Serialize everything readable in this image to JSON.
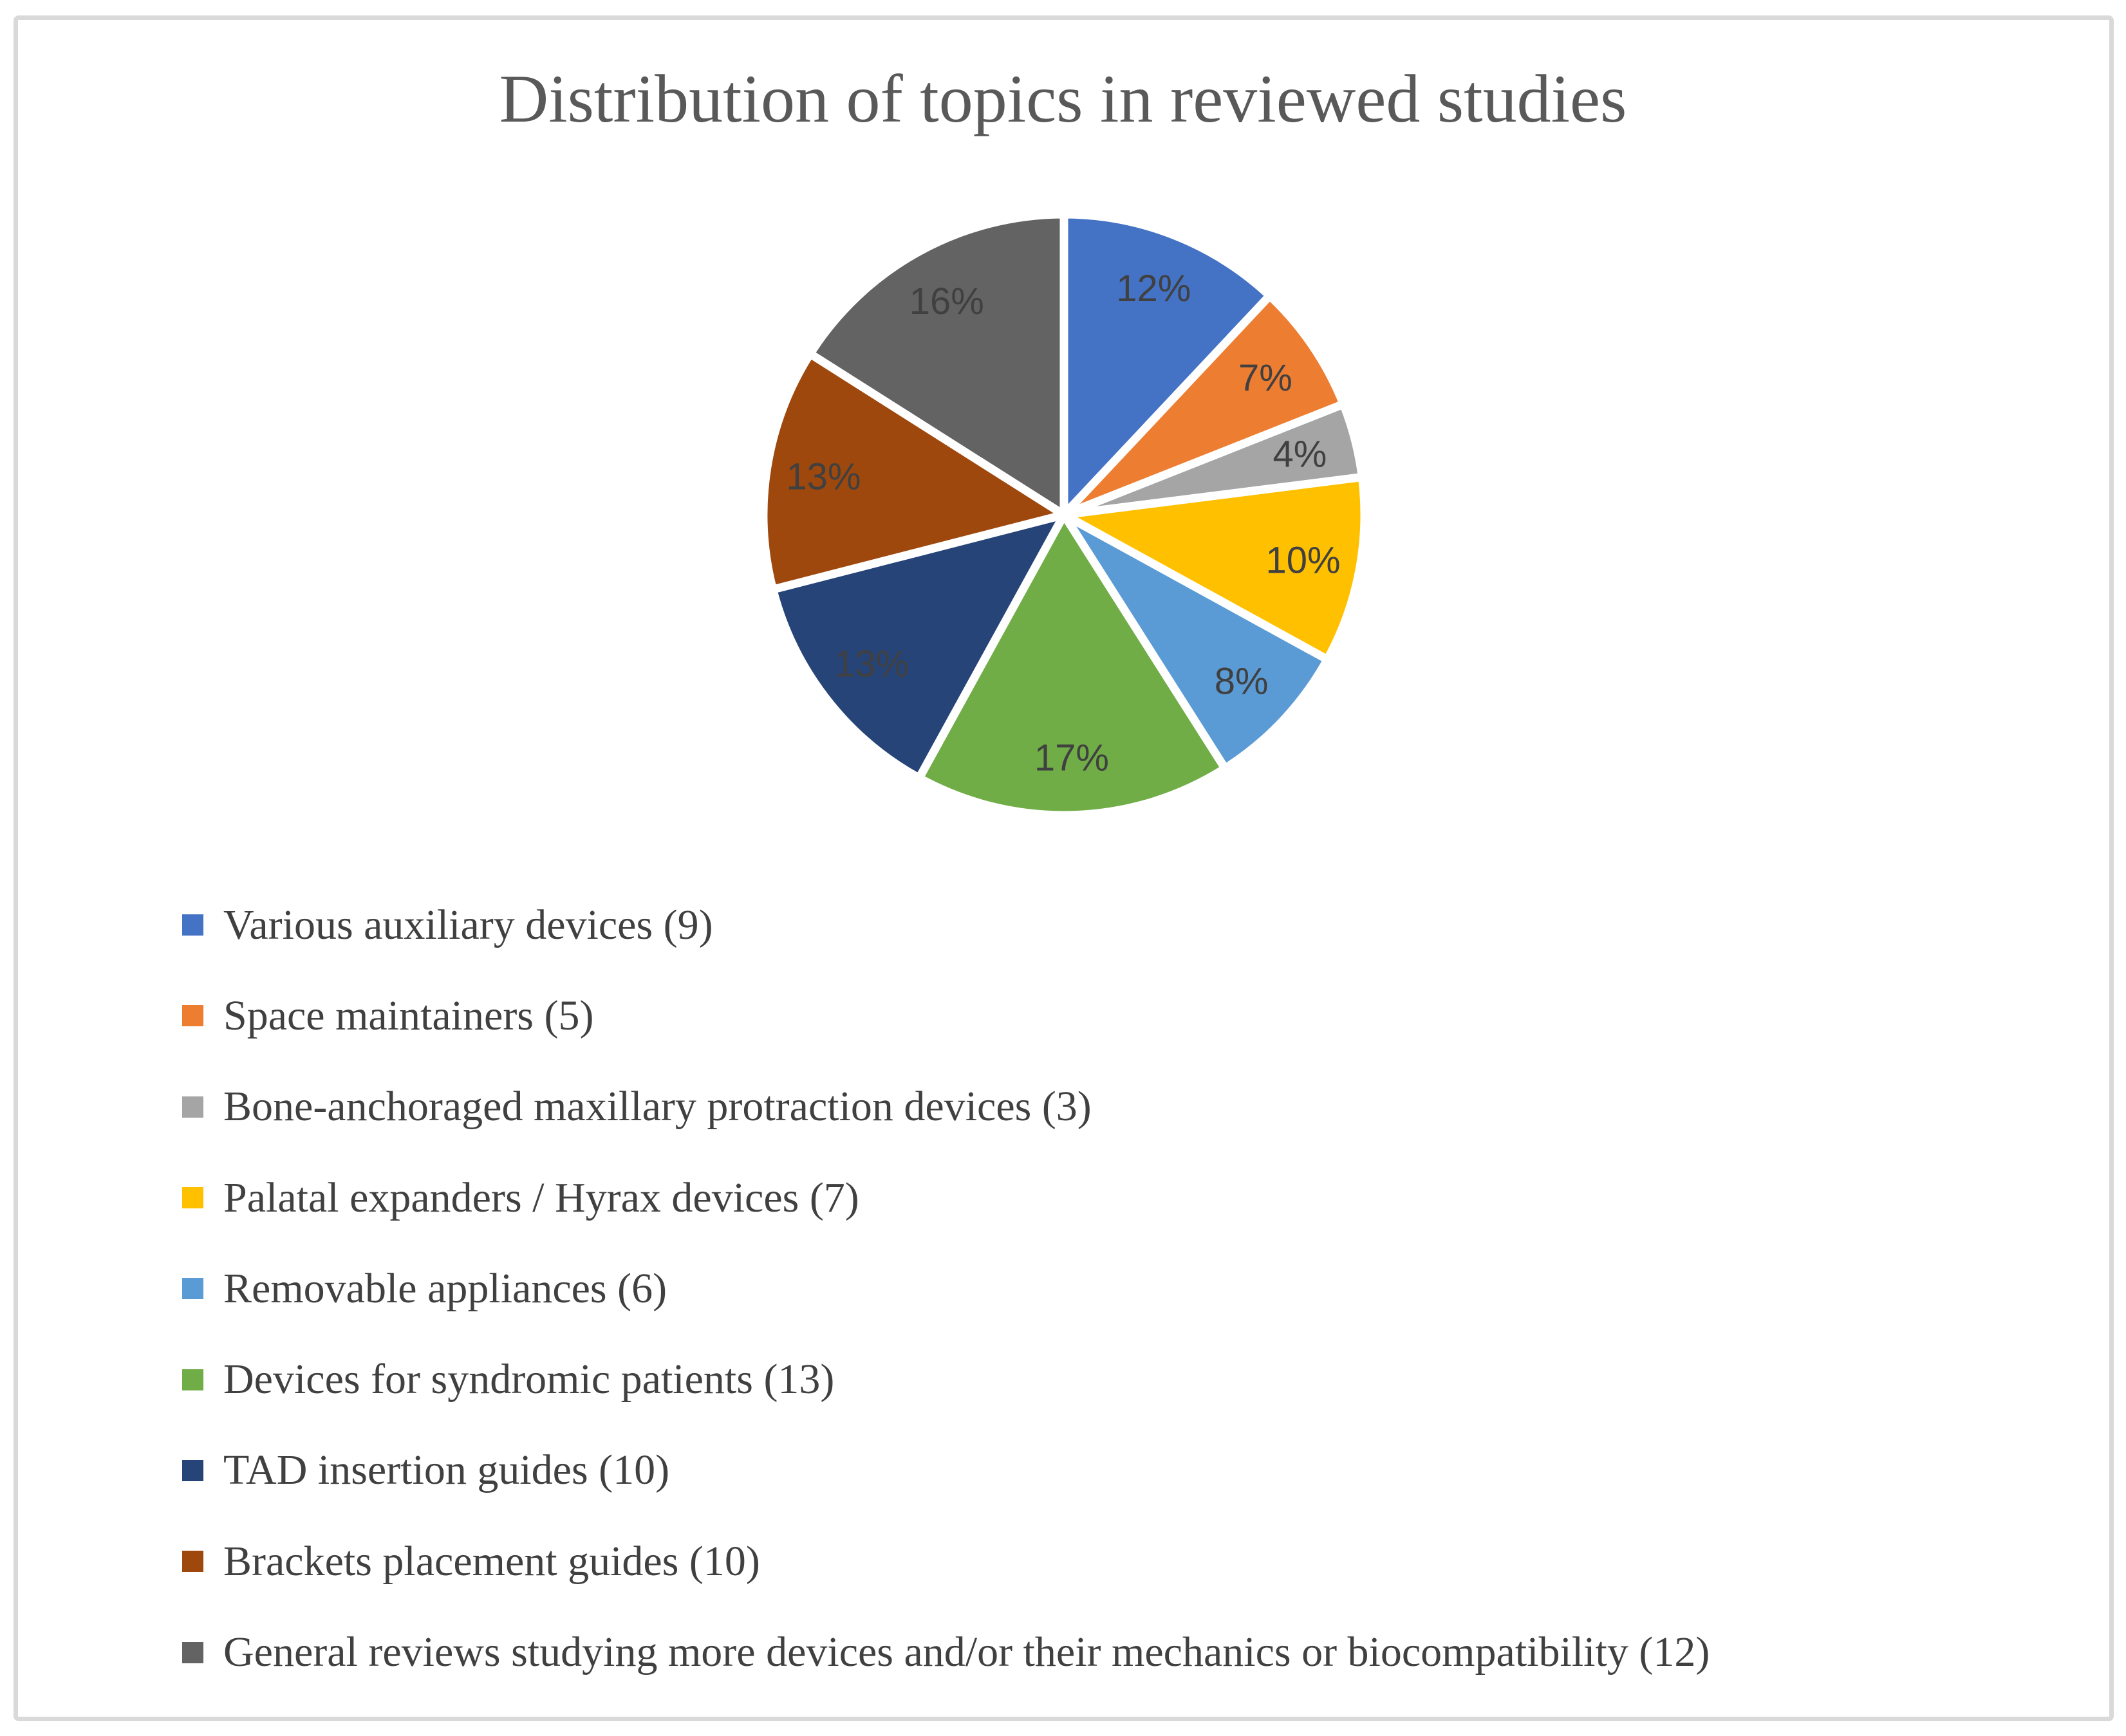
{
  "figure": {
    "border_color": "#D9D9D9",
    "background_color": "#FFFFFF",
    "title_color": "#595959",
    "label_color": "#404040"
  },
  "chart_data": {
    "type": "pie",
    "title": "Distribution of topics in reviewed studies",
    "start_angle_deg": 0,
    "direction": "clockwise",
    "legend_position": "bottom-left",
    "slice_border_color": "#FFFFFF",
    "slices": [
      {
        "label": "Various auxiliary devices (9)",
        "count": 9,
        "percent": 12,
        "percent_label": "12%",
        "color": "#4472C4"
      },
      {
        "label": "Space maintainers (5)",
        "count": 5,
        "percent": 7,
        "percent_label": "7%",
        "color": "#ED7D31"
      },
      {
        "label": "Bone-anchoraged maxillary protraction devices (3)",
        "count": 3,
        "percent": 4,
        "percent_label": "4%",
        "color": "#A5A5A5"
      },
      {
        "label": "Palatal expanders / Hyrax devices (7)",
        "count": 7,
        "percent": 10,
        "percent_label": "10%",
        "color": "#FFC000"
      },
      {
        "label": "Removable appliances (6)",
        "count": 6,
        "percent": 8,
        "percent_label": "8%",
        "color": "#5B9BD5"
      },
      {
        "label": "Devices for syndromic patients (13)",
        "count": 13,
        "percent": 17,
        "percent_label": "17%",
        "color": "#70AD47"
      },
      {
        "label": "TAD insertion guides (10)",
        "count": 10,
        "percent": 13,
        "percent_label": "13%",
        "color": "#264478"
      },
      {
        "label": "Brackets placement guides (10)",
        "count": 10,
        "percent": 13,
        "percent_label": "13%",
        "color": "#9E480E"
      },
      {
        "label": "General reviews studying more devices and/or their mechanics or biocompatibility (12)",
        "count": 12,
        "percent": 16,
        "percent_label": "16%",
        "color": "#636363"
      }
    ]
  }
}
